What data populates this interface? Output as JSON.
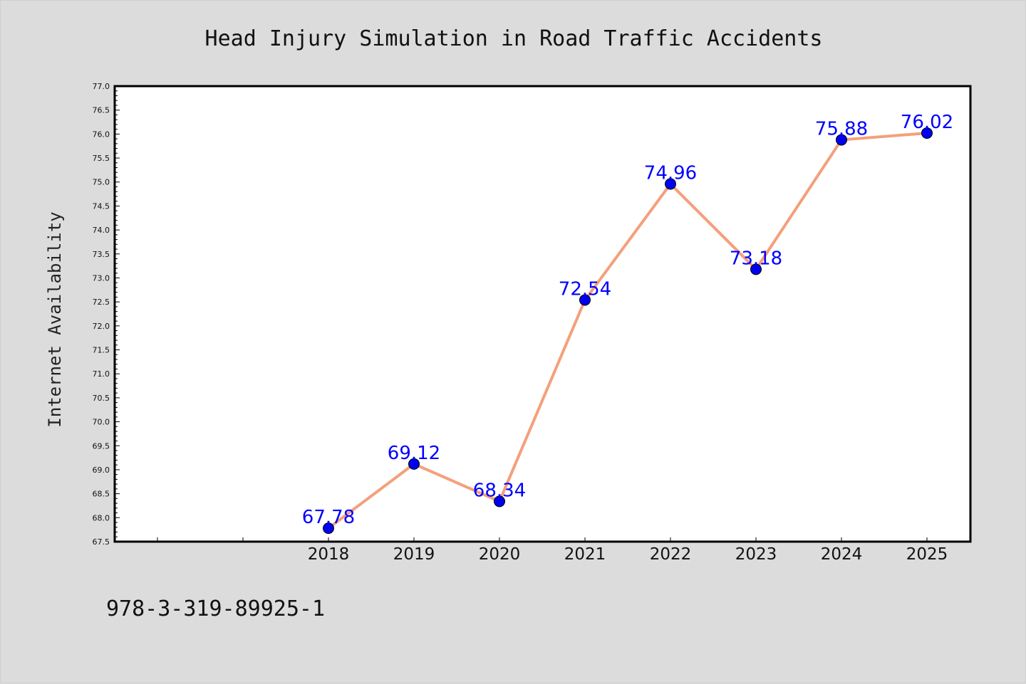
{
  "chart_data": {
    "type": "line",
    "title": "Head Injury Simulation in Road Traffic Accidents",
    "xlabel": "",
    "ylabel": "Internet Availability",
    "x": [
      "2018",
      "2019",
      "2020",
      "2021",
      "2022",
      "2023",
      "2024",
      "2025"
    ],
    "values": [
      67.78,
      69.12,
      68.34,
      72.54,
      74.96,
      73.18,
      75.88,
      76.02
    ],
    "data_labels": [
      "67.78",
      "69.12",
      "68.34",
      "72.54",
      "74.96",
      "73.18",
      "75.88",
      "76.02"
    ],
    "ylim": [
      67.5,
      77.0
    ],
    "yticks": [
      "67.5",
      "68.0",
      "68.5",
      "69.0",
      "69.5",
      "70.0",
      "70.5",
      "71.0",
      "71.5",
      "72.0",
      "72.5",
      "73.0",
      "73.5",
      "74.0",
      "74.5",
      "75.0",
      "75.5",
      "76.0",
      "76.5",
      "77.0"
    ],
    "grid": false,
    "legend": "none",
    "line_color": "#f4a07c",
    "marker_color": "#0000ee",
    "label_color": "#0000ff"
  },
  "footnote": "978-3-319-89925-1"
}
